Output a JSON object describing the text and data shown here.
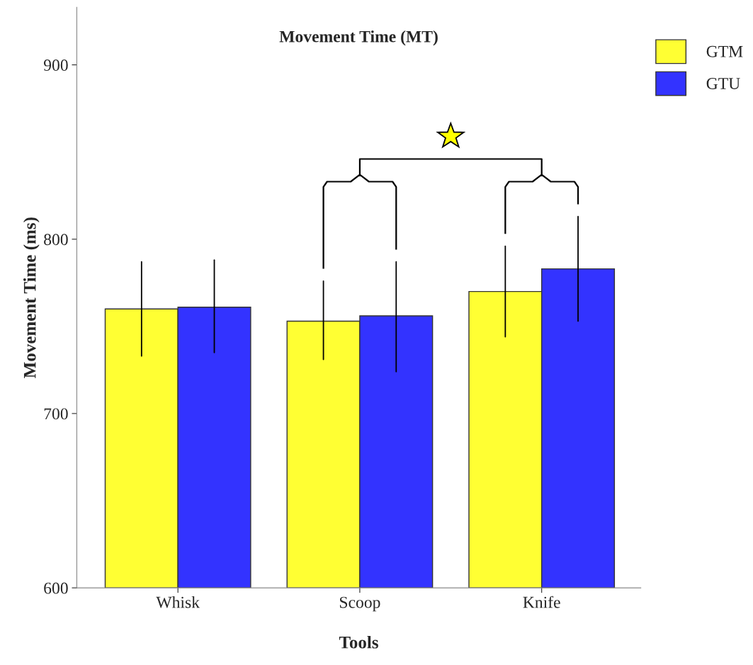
{
  "chart_data": {
    "type": "bar",
    "title": "Movement Time (MT)",
    "xlabel": "Tools",
    "ylabel": "Movement Time (ms)",
    "categories": [
      "Whisk",
      "Scoop",
      "Knife"
    ],
    "series": [
      {
        "name": "GTM",
        "color": "#ffff33",
        "values": [
          760,
          753,
          770
        ],
        "errors": [
          [
            733,
            787
          ],
          [
            731,
            776
          ],
          [
            744,
            796
          ]
        ]
      },
      {
        "name": "GTU",
        "color": "#3333ff",
        "values": [
          761,
          756,
          783
        ],
        "errors": [
          [
            735,
            788
          ],
          [
            724,
            787
          ],
          [
            753,
            813
          ]
        ]
      }
    ],
    "ylim": [
      600,
      933
    ],
    "yticks": [
      600,
      700,
      800,
      900
    ],
    "grid": false,
    "legend": "top right"
  }
}
